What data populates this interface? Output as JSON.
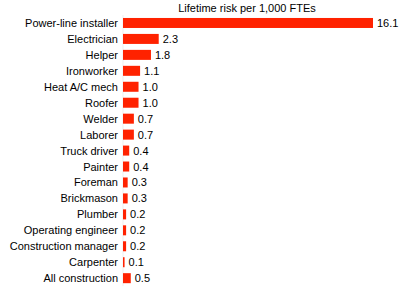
{
  "chart_data": {
    "type": "bar",
    "title": "Lifetime risk per 1,000 FTEs",
    "orientation": "horizontal",
    "categories": [
      "Power-line installer",
      "Electrician",
      "Helper",
      "Ironworker",
      "Heat A/C mech",
      "Roofer",
      "Welder",
      "Laborer",
      "Truck driver",
      "Painter",
      "Foreman",
      "Brickmason",
      "Plumber",
      "Operating engineer",
      "Construction manager",
      "Carpenter",
      "All construction"
    ],
    "values": [
      16.1,
      2.3,
      1.8,
      1.1,
      1.0,
      1.0,
      0.7,
      0.7,
      0.4,
      0.4,
      0.3,
      0.3,
      0.2,
      0.2,
      0.2,
      0.1,
      0.5
    ],
    "value_labels": [
      "16.1",
      "2.3",
      "1.8",
      "1.1",
      "1.0",
      "1.0",
      "0.7",
      "0.7",
      "0.4",
      "0.4",
      "0.3",
      "0.3",
      "0.2",
      "0.2",
      "0.2",
      "0.1",
      "0.5"
    ],
    "color": "#ff2200",
    "xlim": [
      0,
      16.1
    ],
    "data_labels": true,
    "tick_labels": "y",
    "grid": false
  }
}
